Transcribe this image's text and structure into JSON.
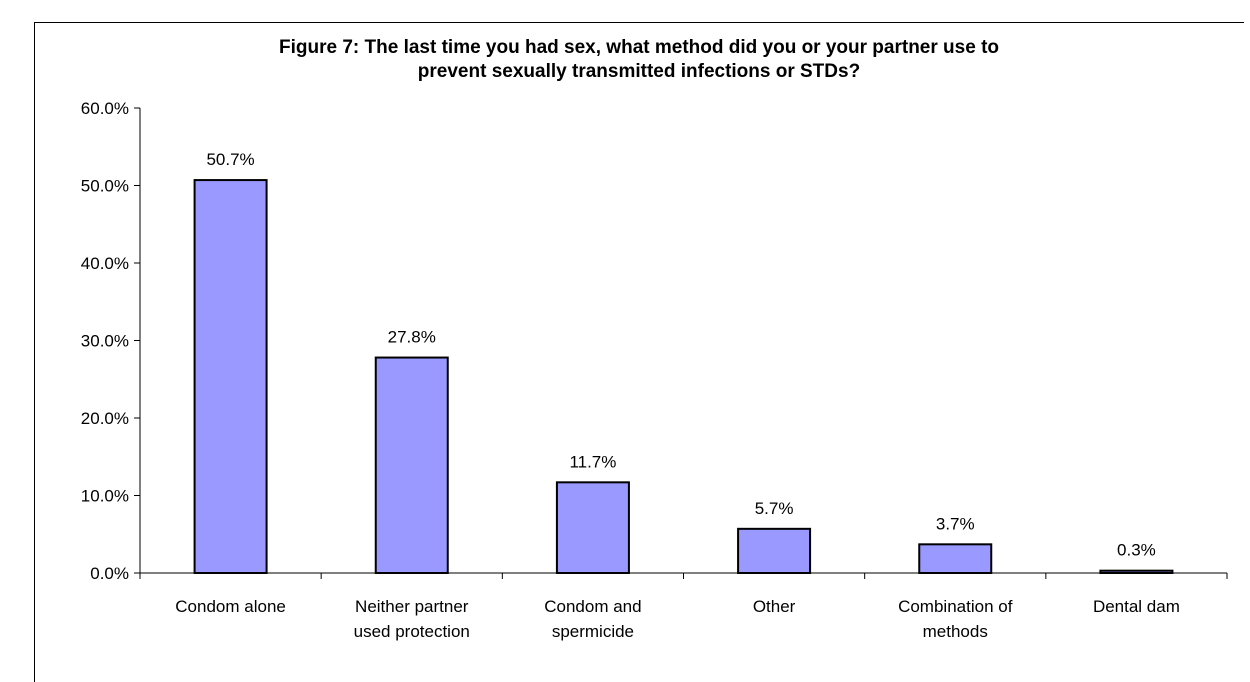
{
  "chart_data": {
    "type": "bar",
    "title_lines": [
      "Figure 7:  The last time you had sex, what method did you or your partner use to",
      "prevent sexually transmitted infections or STDs?"
    ],
    "categories": [
      [
        "Condom alone"
      ],
      [
        "Neither partner",
        "used protection"
      ],
      [
        "Condom and",
        "spermicide"
      ],
      [
        "Other"
      ],
      [
        "Combination of",
        "methods"
      ],
      [
        "Dental dam"
      ]
    ],
    "values": [
      50.7,
      27.8,
      11.7,
      5.7,
      3.7,
      0.3
    ],
    "data_labels": [
      "50.7%",
      "27.8%",
      "11.7%",
      "5.7%",
      "3.7%",
      "0.3%"
    ],
    "yticks": [
      "0.0%",
      "10.0%",
      "20.0%",
      "30.0%",
      "40.0%",
      "50.0%",
      "60.0%"
    ],
    "ylim": [
      0,
      60
    ],
    "xlabel": "",
    "ylabel": "",
    "grid": false,
    "legend": "none",
    "bar_color": "#9999ff",
    "bar_stroke": "#000000"
  }
}
